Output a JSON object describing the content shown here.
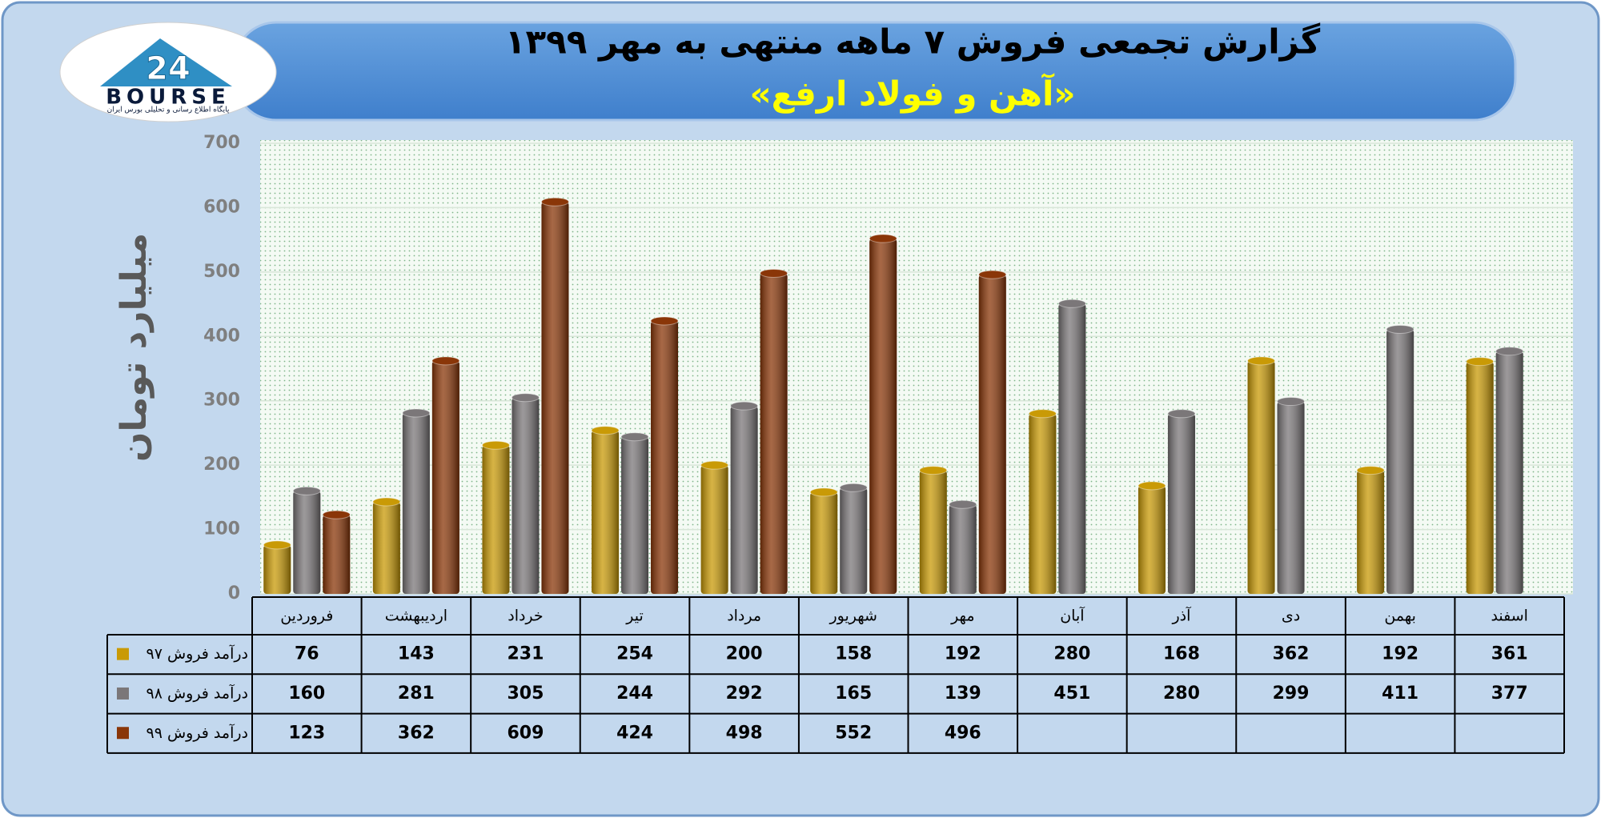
{
  "logo": {
    "mark": "24",
    "name": "BOURSE",
    "caption": "پایگاه اطلاع رسانی و تحلیلی بورس ایران"
  },
  "chart_data": {
    "type": "bar",
    "title": "گزارش تجمعی فروش ۷ ماهه منتهی به مهر ۱۳۹۹",
    "subtitle": "«آهن و فولاد ارفع»",
    "y_label": "میلیارد تومان",
    "categories": [
      "فروردین",
      "اردیبهشت",
      "خرداد",
      "تیر",
      "مرداد",
      "شهریور",
      "مهر",
      "آبان",
      "آذر",
      "دی",
      "بهمن",
      "اسفند"
    ],
    "series": [
      {
        "name": "درآمد فروش ۹۷",
        "color": "#c99a06",
        "values": [
          76,
          143,
          231,
          254,
          200,
          158,
          192,
          280,
          168,
          362,
          192,
          361
        ]
      },
      {
        "name": "درآمد فروش ۹۸",
        "color": "#7b7779",
        "values": [
          160,
          281,
          305,
          244,
          292,
          165,
          139,
          451,
          280,
          299,
          411,
          377
        ]
      },
      {
        "name": "درآمد فروش ۹۹",
        "color": "#8a3608",
        "values": [
          123,
          362,
          609,
          424,
          498,
          552,
          496,
          null,
          null,
          null,
          null,
          null
        ]
      }
    ],
    "ylim": [
      0,
      700
    ],
    "yticks": [
      0,
      100,
      200,
      300,
      400,
      500,
      600,
      700
    ],
    "grid": true
  }
}
